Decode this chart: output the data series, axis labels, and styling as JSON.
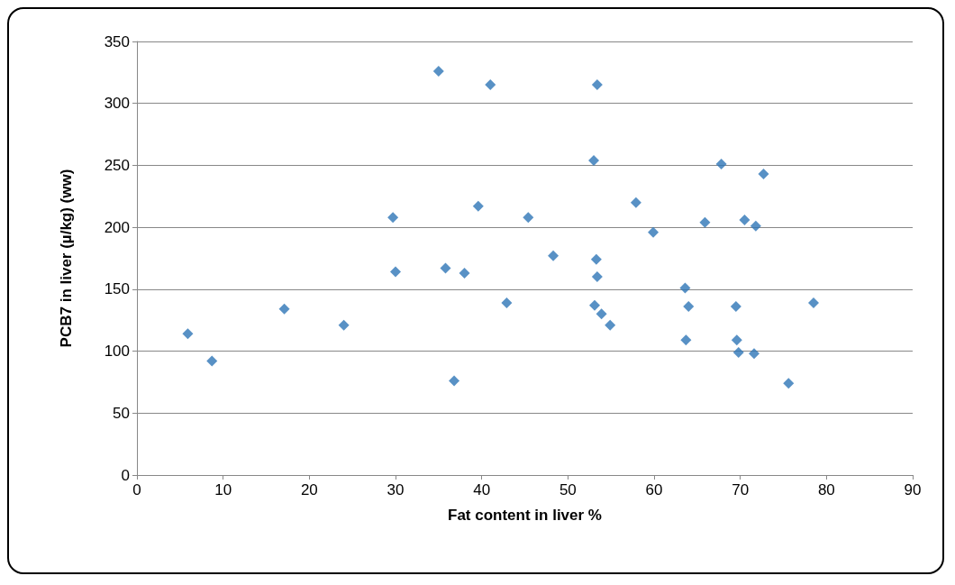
{
  "chart_data": {
    "type": "scatter",
    "xlabel": "Fat content in liver %",
    "ylabel": "PCB7 in liver (µ/kg) (ww)",
    "x": [
      5.9,
      8.7,
      17.1,
      24.0,
      29.7,
      30.0,
      35.0,
      35.8,
      36.8,
      38.0,
      39.6,
      41.0,
      42.9,
      45.4,
      48.3,
      53.4,
      53.0,
      53.3,
      53.4,
      53.1,
      53.9,
      54.9,
      57.9,
      59.9,
      63.6,
      64.0,
      63.7,
      65.9,
      67.8,
      69.5,
      69.6,
      69.8,
      70.5,
      71.8,
      71.6,
      72.7,
      75.6,
      78.5
    ],
    "values": [
      114,
      92,
      134,
      121,
      208,
      164,
      326,
      167,
      76,
      163,
      217,
      315,
      139,
      208,
      177,
      315,
      254,
      174,
      160,
      137,
      130,
      121,
      220,
      196,
      151,
      136,
      109,
      204,
      251,
      136,
      109,
      99,
      206,
      201,
      98,
      243,
      74,
      139
    ],
    "color": "#2e75b6",
    "marker": "diamond",
    "xlim": [
      0,
      90
    ],
    "xticks": [
      0,
      10,
      20,
      30,
      40,
      50,
      60,
      70,
      80,
      90
    ],
    "ylim": [
      0,
      350
    ],
    "yticks": [
      0,
      50,
      100,
      150,
      200,
      250,
      300,
      350
    ],
    "grid": "y"
  }
}
